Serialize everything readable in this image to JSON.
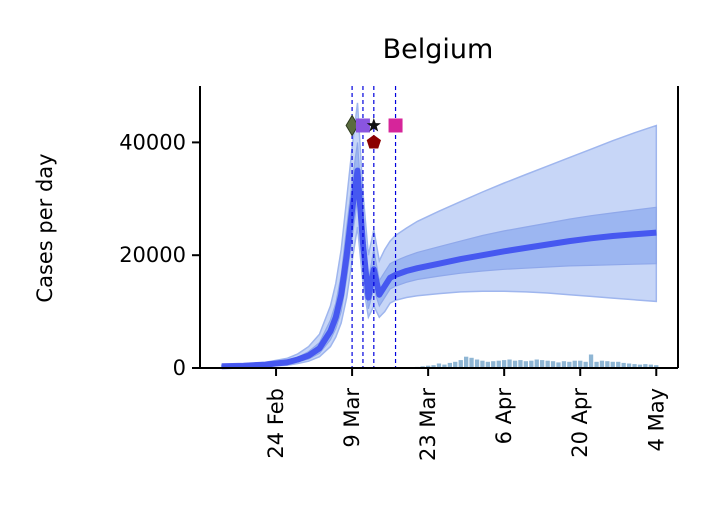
{
  "chart_data": {
    "type": "line",
    "title": "Belgium",
    "ylabel": "Cases per day",
    "xlabel": "",
    "x_tick_labels": [
      "24 Feb",
      "9 Mar",
      "23 Mar",
      "6 Apr",
      "20 Apr",
      "4 May"
    ],
    "x_tick_days": [
      10,
      24,
      38,
      52,
      66,
      80
    ],
    "xlim_days": [
      -4,
      84
    ],
    "y_ticks": [
      0,
      20000,
      40000
    ],
    "ylim": [
      0,
      50000
    ],
    "grid": false,
    "colors": {
      "median": "#3d4ef0",
      "inner_band": "#7ea0ec",
      "outer_band": "#b4c8f4",
      "observed_bars": "#8fb6d4",
      "intervention_lines": "#0000dd"
    },
    "series": [
      {
        "x": [
          0,
          4,
          8,
          12,
          14,
          16,
          18,
          20,
          21,
          22,
          23,
          24,
          25,
          26,
          27,
          28,
          29,
          30,
          31,
          32,
          34,
          36,
          40,
          44,
          48,
          52,
          56,
          60,
          64,
          68,
          72,
          76,
          80
        ],
        "y": [
          300,
          400,
          600,
          1000,
          1500,
          2200,
          3500,
          6500,
          9000,
          13000,
          20000,
          28000,
          35000,
          22000,
          12500,
          17500,
          13000,
          14500,
          16000,
          16500,
          17200,
          17700,
          18500,
          19300,
          20000,
          20700,
          21300,
          21900,
          22500,
          23000,
          23400,
          23700,
          24000
        ],
        "inner_low": [
          200,
          300,
          450,
          750,
          1100,
          1600,
          2600,
          5000,
          7000,
          10000,
          16000,
          23000,
          30000,
          19000,
          10500,
          14000,
          11000,
          12500,
          14000,
          14500,
          15200,
          15700,
          16300,
          16800,
          17200,
          17500,
          17700,
          17900,
          18100,
          18200,
          18300,
          18400,
          18500
        ],
        "inner_high": [
          400,
          550,
          800,
          1300,
          1900,
          2900,
          4500,
          8500,
          11500,
          16500,
          25000,
          33000,
          40000,
          26000,
          15500,
          21000,
          15500,
          17000,
          18500,
          19000,
          19800,
          20500,
          21500,
          22500,
          23500,
          24300,
          25000,
          25700,
          26400,
          27000,
          27500,
          28000,
          28500
        ],
        "outer_low": [
          100,
          200,
          300,
          500,
          800,
          1200,
          2000,
          3800,
          5500,
          8000,
          12500,
          19000,
          25000,
          15000,
          9000,
          11000,
          9000,
          10000,
          11500,
          12000,
          12500,
          12800,
          13200,
          13500,
          13600,
          13600,
          13500,
          13300,
          13000,
          12700,
          12400,
          12100,
          11800
        ],
        "outer_high": [
          500,
          700,
          1000,
          1700,
          2500,
          3800,
          6000,
          11000,
          15000,
          21000,
          30000,
          39000,
          47000,
          31000,
          20000,
          24500,
          19000,
          21000,
          22500,
          23500,
          24800,
          26000,
          27800,
          29500,
          31200,
          32800,
          34300,
          35800,
          37300,
          38800,
          40300,
          41700,
          43000
        ]
      }
    ],
    "observed_days": [
      34,
      35,
      36,
      37,
      38,
      39,
      40,
      41,
      42,
      43,
      44,
      45,
      46,
      47,
      48,
      49,
      50,
      51,
      52,
      53,
      54,
      55,
      56,
      57,
      58,
      59,
      60,
      61,
      62,
      63,
      64,
      65,
      66,
      67,
      68,
      69,
      70,
      71,
      72,
      73,
      74,
      75,
      76,
      77,
      78,
      79,
      80
    ],
    "observed_values": [
      100,
      150,
      200,
      300,
      400,
      500,
      800,
      600,
      900,
      1100,
      1400,
      2000,
      1800,
      1500,
      1300,
      1100,
      1200,
      1300,
      1400,
      1500,
      1300,
      1400,
      1200,
      1300,
      1500,
      1400,
      1300,
      1200,
      1000,
      1200,
      1100,
      1300,
      1300,
      1100,
      2400,
      1100,
      1300,
      1200,
      1100,
      1100,
      900,
      800,
      700,
      600,
      700,
      600,
      500
    ],
    "interventions": [
      {
        "day": 24,
        "marker": "diamond",
        "color": "#5a6b3e"
      },
      {
        "day": 26,
        "marker": "square",
        "color": "#8a55e0"
      },
      {
        "day": 28,
        "marker": "star",
        "color": "#111111"
      },
      {
        "day": 28,
        "marker": "pentagon",
        "color": "#8b0000"
      },
      {
        "day": 32,
        "marker": "square",
        "color": "#d6259a"
      }
    ],
    "intervention_marker_y": 43000,
    "intervention_marker_y2": 40000
  }
}
